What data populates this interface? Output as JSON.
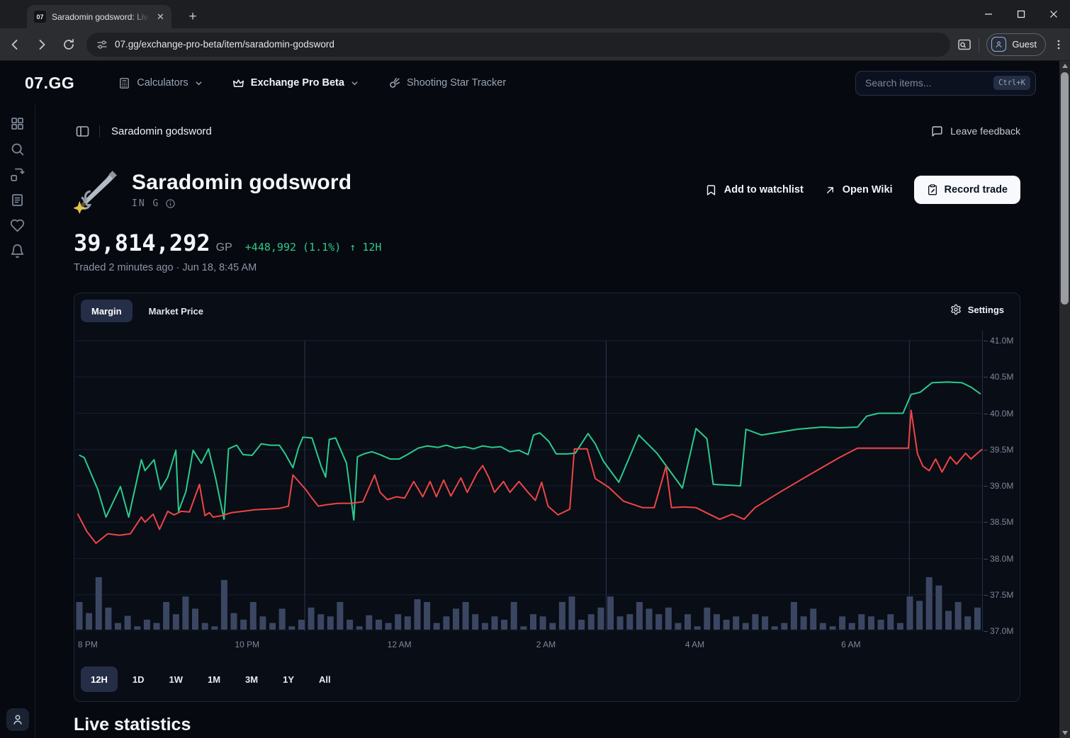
{
  "browser": {
    "tab_favicon": "07",
    "tab_title": "Saradomin godsword: Live GE P",
    "url": "07.gg/exchange-pro-beta/item/saradomin-godsword",
    "profile_label": "Guest"
  },
  "site_header": {
    "logo": "07.GG",
    "nav": [
      {
        "label": "Calculators",
        "icon": "calculator-icon"
      },
      {
        "label": "Exchange Pro Beta",
        "icon": "crown-icon"
      },
      {
        "label": "Shooting Star Tracker",
        "icon": "comet-icon"
      }
    ],
    "search_placeholder": "Search items...",
    "search_shortcut": "Ctrl+K"
  },
  "sidebar": {
    "icons": [
      "dashboard-icon",
      "search-icon",
      "compare-icon",
      "articles-icon",
      "favorites-icon",
      "notifications-icon"
    ],
    "user_icon": "user-icon"
  },
  "breadcrumb": {
    "item_name": "Saradomin godsword",
    "feedback_label": "Leave feedback"
  },
  "item": {
    "name": "Saradomin godsword",
    "tag": "IN G",
    "price": "39,814,292",
    "currency": "GP",
    "change": "+448,992 (1.1%)",
    "change_arrow": "↑",
    "change_period": "12H",
    "traded_info": "Traded 2 minutes ago · Jun 18, 8:45 AM",
    "watchlist_label": "Add to watchlist",
    "wiki_label": "Open Wiki",
    "record_label": "Record trade"
  },
  "chart": {
    "tabs": [
      "Margin",
      "Market Price"
    ],
    "active_tab": "Margin",
    "settings_label": "Settings",
    "ranges": [
      "12H",
      "1D",
      "1W",
      "1M",
      "3M",
      "1Y",
      "All"
    ],
    "active_range": "12H"
  },
  "chart_data": {
    "type": "line",
    "title": "Margin",
    "x_ticks": [
      {
        "label": "8 PM",
        "t": 0.003
      },
      {
        "label": "10 PM",
        "t": 0.176
      },
      {
        "label": "12 AM",
        "t": 0.344
      },
      {
        "label": "2 AM",
        "t": 0.508
      },
      {
        "label": "4 AM",
        "t": 0.672
      },
      {
        "label": "6 AM",
        "t": 0.844
      }
    ],
    "y_ticks": [
      "41.0M",
      "40.5M",
      "40.0M",
      "39.5M",
      "39.0M",
      "38.5M",
      "38.0M",
      "37.5M",
      "37.0M"
    ],
    "ylim": [
      37.0,
      41.0
    ],
    "v_gridlines": [
      0.253,
      0.585,
      0.919
    ],
    "grid_color": "#151f31",
    "vgrid_color": "#2b374f",
    "series": [
      {
        "name": "sell-price",
        "color": "#2bcb8c",
        "points": [
          [
            0.005,
            39.42
          ],
          [
            0.01,
            39.39
          ],
          [
            0.025,
            38.95
          ],
          [
            0.034,
            38.57
          ],
          [
            0.05,
            38.99
          ],
          [
            0.059,
            38.57
          ],
          [
            0.073,
            39.36
          ],
          [
            0.077,
            39.21
          ],
          [
            0.087,
            39.36
          ],
          [
            0.094,
            38.95
          ],
          [
            0.102,
            39.12
          ],
          [
            0.111,
            39.49
          ],
          [
            0.114,
            38.65
          ],
          [
            0.122,
            38.92
          ],
          [
            0.13,
            39.49
          ],
          [
            0.139,
            39.31
          ],
          [
            0.147,
            39.51
          ],
          [
            0.155,
            39.09
          ],
          [
            0.164,
            38.54
          ],
          [
            0.169,
            39.51
          ],
          [
            0.178,
            39.56
          ],
          [
            0.185,
            39.43
          ],
          [
            0.195,
            39.42
          ],
          [
            0.205,
            39.58
          ],
          [
            0.215,
            39.56
          ],
          [
            0.225,
            39.56
          ],
          [
            0.231,
            39.45
          ],
          [
            0.24,
            39.25
          ],
          [
            0.246,
            39.52
          ],
          [
            0.251,
            39.67
          ],
          [
            0.261,
            39.66
          ],
          [
            0.271,
            39.27
          ],
          [
            0.276,
            39.12
          ],
          [
            0.28,
            39.64
          ],
          [
            0.287,
            39.66
          ],
          [
            0.299,
            39.31
          ],
          [
            0.307,
            38.53
          ],
          [
            0.311,
            39.4
          ],
          [
            0.318,
            39.44
          ],
          [
            0.327,
            39.47
          ],
          [
            0.336,
            39.43
          ],
          [
            0.347,
            39.37
          ],
          [
            0.357,
            39.37
          ],
          [
            0.366,
            39.43
          ],
          [
            0.378,
            39.52
          ],
          [
            0.388,
            39.55
          ],
          [
            0.4,
            39.53
          ],
          [
            0.409,
            39.56
          ],
          [
            0.419,
            39.52
          ],
          [
            0.429,
            39.54
          ],
          [
            0.439,
            39.51
          ],
          [
            0.449,
            39.55
          ],
          [
            0.459,
            39.53
          ],
          [
            0.469,
            39.54
          ],
          [
            0.479,
            39.47
          ],
          [
            0.489,
            39.49
          ],
          [
            0.499,
            39.43
          ],
          [
            0.505,
            39.7
          ],
          [
            0.512,
            39.73
          ],
          [
            0.522,
            39.61
          ],
          [
            0.53,
            39.44
          ],
          [
            0.542,
            39.44
          ],
          [
            0.551,
            39.45
          ],
          [
            0.565,
            39.72
          ],
          [
            0.573,
            39.58
          ],
          [
            0.582,
            39.34
          ],
          [
            0.599,
            39.05
          ],
          [
            0.621,
            39.7
          ],
          [
            0.641,
            39.45
          ],
          [
            0.669,
            38.97
          ],
          [
            0.684,
            39.79
          ],
          [
            0.696,
            39.65
          ],
          [
            0.703,
            39.02
          ],
          [
            0.733,
            39.0
          ],
          [
            0.739,
            39.78
          ],
          [
            0.756,
            39.7
          ],
          [
            0.776,
            39.74
          ],
          [
            0.796,
            39.78
          ],
          [
            0.823,
            39.81
          ],
          [
            0.842,
            39.8
          ],
          [
            0.862,
            39.81
          ],
          [
            0.872,
            39.96
          ],
          [
            0.885,
            40.0
          ],
          [
            0.902,
            40.0
          ],
          [
            0.912,
            40.0
          ],
          [
            0.921,
            40.26
          ],
          [
            0.931,
            40.29
          ],
          [
            0.944,
            40.42
          ],
          [
            0.961,
            40.43
          ],
          [
            0.977,
            40.42
          ],
          [
            0.987,
            40.36
          ],
          [
            0.997,
            40.27
          ]
        ]
      },
      {
        "name": "buy-price",
        "color": "#ee4545",
        "points": [
          [
            0.003,
            38.61
          ],
          [
            0.013,
            38.37
          ],
          [
            0.023,
            38.21
          ],
          [
            0.036,
            38.34
          ],
          [
            0.049,
            38.32
          ],
          [
            0.061,
            38.34
          ],
          [
            0.073,
            38.57
          ],
          [
            0.077,
            38.5
          ],
          [
            0.086,
            38.61
          ],
          [
            0.093,
            38.4
          ],
          [
            0.102,
            38.65
          ],
          [
            0.109,
            38.6
          ],
          [
            0.117,
            38.65
          ],
          [
            0.126,
            38.64
          ],
          [
            0.137,
            39.02
          ],
          [
            0.143,
            38.59
          ],
          [
            0.148,
            38.63
          ],
          [
            0.152,
            38.57
          ],
          [
            0.162,
            38.59
          ],
          [
            0.172,
            38.63
          ],
          [
            0.185,
            38.65
          ],
          [
            0.198,
            38.67
          ],
          [
            0.212,
            38.68
          ],
          [
            0.225,
            38.69
          ],
          [
            0.235,
            38.72
          ],
          [
            0.24,
            39.15
          ],
          [
            0.254,
            38.95
          ],
          [
            0.261,
            38.83
          ],
          [
            0.268,
            38.72
          ],
          [
            0.277,
            38.74
          ],
          [
            0.29,
            38.76
          ],
          [
            0.304,
            38.76
          ],
          [
            0.317,
            38.78
          ],
          [
            0.33,
            39.15
          ],
          [
            0.336,
            38.91
          ],
          [
            0.344,
            38.81
          ],
          [
            0.354,
            38.85
          ],
          [
            0.363,
            38.83
          ],
          [
            0.373,
            39.06
          ],
          [
            0.383,
            38.85
          ],
          [
            0.391,
            39.06
          ],
          [
            0.398,
            38.85
          ],
          [
            0.406,
            39.08
          ],
          [
            0.414,
            38.86
          ],
          [
            0.425,
            39.11
          ],
          [
            0.432,
            38.91
          ],
          [
            0.443,
            39.18
          ],
          [
            0.449,
            39.28
          ],
          [
            0.456,
            39.11
          ],
          [
            0.462,
            38.91
          ],
          [
            0.472,
            39.06
          ],
          [
            0.479,
            38.91
          ],
          [
            0.489,
            39.06
          ],
          [
            0.499,
            38.91
          ],
          [
            0.507,
            38.8
          ],
          [
            0.514,
            39.05
          ],
          [
            0.521,
            38.72
          ],
          [
            0.532,
            38.6
          ],
          [
            0.545,
            38.68
          ],
          [
            0.55,
            39.51
          ],
          [
            0.564,
            39.51
          ],
          [
            0.573,
            39.1
          ],
          [
            0.588,
            38.98
          ],
          [
            0.604,
            38.79
          ],
          [
            0.625,
            38.7
          ],
          [
            0.638,
            38.7
          ],
          [
            0.651,
            39.27
          ],
          [
            0.657,
            38.7
          ],
          [
            0.671,
            38.71
          ],
          [
            0.684,
            38.7
          ],
          [
            0.71,
            38.54
          ],
          [
            0.724,
            38.61
          ],
          [
            0.737,
            38.54
          ],
          [
            0.749,
            38.7
          ],
          [
            0.776,
            38.91
          ],
          [
            0.81,
            39.16
          ],
          [
            0.842,
            39.39
          ],
          [
            0.862,
            39.52
          ],
          [
            0.918,
            39.52
          ],
          [
            0.921,
            40.04
          ],
          [
            0.928,
            39.44
          ],
          [
            0.934,
            39.27
          ],
          [
            0.941,
            39.21
          ],
          [
            0.948,
            39.37
          ],
          [
            0.955,
            39.19
          ],
          [
            0.964,
            39.4
          ],
          [
            0.971,
            39.3
          ],
          [
            0.981,
            39.45
          ],
          [
            0.987,
            39.37
          ],
          [
            0.994,
            39.45
          ],
          [
            0.999,
            39.5
          ]
        ]
      }
    ],
    "volume": {
      "name": "trade-volume",
      "color": "#3b4762",
      "values": [
        0.5,
        0.3,
        0.95,
        0.4,
        0.12,
        0.25,
        0.06,
        0.18,
        0.12,
        0.5,
        0.28,
        0.6,
        0.38,
        0.12,
        0.06,
        0.9,
        0.3,
        0.18,
        0.5,
        0.24,
        0.12,
        0.38,
        0.06,
        0.18,
        0.4,
        0.28,
        0.24,
        0.5,
        0.18,
        0.06,
        0.26,
        0.18,
        0.12,
        0.28,
        0.24,
        0.55,
        0.5,
        0.12,
        0.24,
        0.38,
        0.5,
        0.28,
        0.12,
        0.24,
        0.18,
        0.5,
        0.06,
        0.28,
        0.24,
        0.12,
        0.5,
        0.6,
        0.18,
        0.28,
        0.4,
        0.6,
        0.24,
        0.28,
        0.5,
        0.38,
        0.28,
        0.4,
        0.12,
        0.28,
        0.06,
        0.4,
        0.28,
        0.18,
        0.24,
        0.12,
        0.28,
        0.24,
        0.06,
        0.12,
        0.5,
        0.24,
        0.38,
        0.12,
        0.06,
        0.24,
        0.12,
        0.28,
        0.24,
        0.18,
        0.28,
        0.12,
        0.6,
        0.52,
        0.95,
        0.8,
        0.34,
        0.5,
        0.24,
        0.4
      ]
    }
  },
  "stats": {
    "title": "Live statistics"
  }
}
